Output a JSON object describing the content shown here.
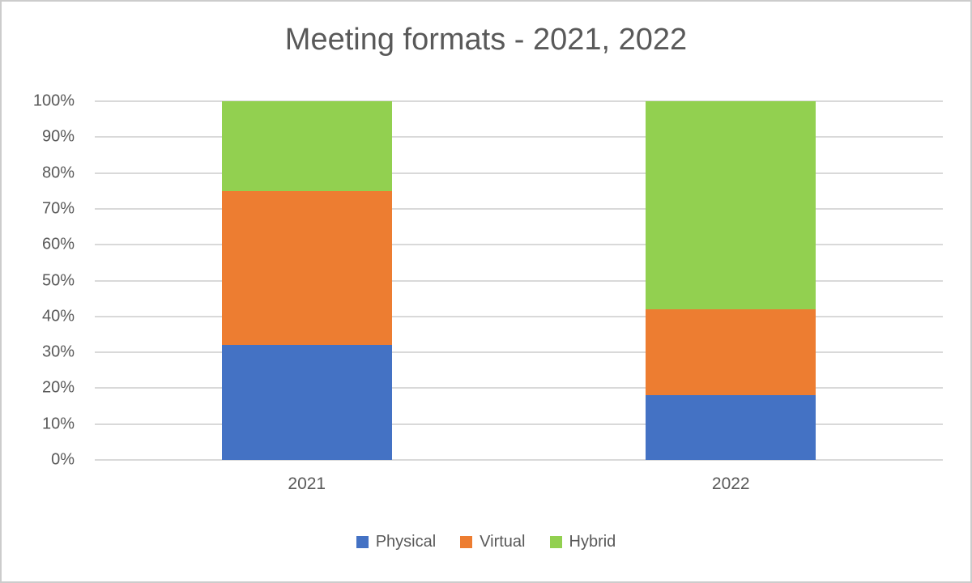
{
  "window": {
    "background": "#ffffff",
    "border_color": "#cccccc"
  },
  "chart_data": {
    "type": "bar",
    "subtype": "stacked-100-percent",
    "title": "Meeting formats - 2021, 2022",
    "categories": [
      "2021",
      "2022"
    ],
    "series": [
      {
        "name": "Physical",
        "color": "#4472C4",
        "values": [
          32,
          18
        ]
      },
      {
        "name": "Virtual",
        "color": "#ED7D31",
        "values": [
          43,
          24
        ]
      },
      {
        "name": "Hybrid",
        "color": "#92D050",
        "values": [
          25,
          58
        ]
      }
    ],
    "y_axis": {
      "min": 0,
      "max": 100,
      "step": 10,
      "tick_labels": [
        "0%",
        "10%",
        "20%",
        "30%",
        "40%",
        "50%",
        "60%",
        "70%",
        "80%",
        "90%",
        "100%"
      ]
    },
    "x_axis": {
      "tick_labels": [
        "2021",
        "2022"
      ]
    },
    "grid": true,
    "gridline_color": "#D9D9D9",
    "text_color": "#595959",
    "legend": {
      "position": "bottom",
      "entries": [
        "Physical",
        "Virtual",
        "Hybrid"
      ]
    }
  }
}
